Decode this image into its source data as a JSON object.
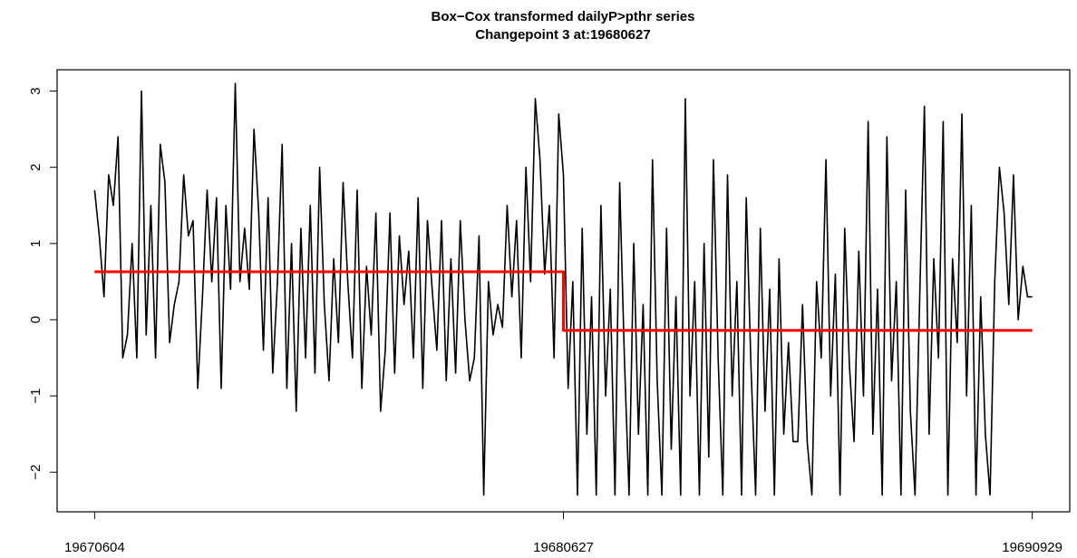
{
  "chart_data": {
    "type": "line",
    "title": "Box−Cox transformed dailyP>pthr series",
    "subtitle": "Changepoint 3 at:19680627",
    "xlim": [
      -8,
      208
    ],
    "xticks": [
      {
        "value": 0,
        "label": "19670604"
      },
      {
        "value": 100,
        "label": "19680627"
      },
      {
        "value": 200,
        "label": "19690929"
      }
    ],
    "ylim": [
      -2.52,
      3.28
    ],
    "yticks": [
      {
        "value": -2,
        "label": "−2"
      },
      {
        "value": -1,
        "label": "−1"
      },
      0,
      1,
      2,
      3
    ],
    "series": [
      {
        "color": "#000000",
        "values": [
          1.7,
          1.1,
          0.3,
          1.9,
          1.5,
          2.4,
          -0.5,
          -0.2,
          1.0,
          -0.5,
          3.0,
          -0.2,
          1.5,
          -0.5,
          2.3,
          1.8,
          -0.3,
          0.2,
          0.5,
          1.9,
          1.1,
          1.3,
          -0.9,
          0.3,
          1.7,
          0.5,
          1.6,
          -0.9,
          1.5,
          0.4,
          3.1,
          0.5,
          1.2,
          0.4,
          2.5,
          1.4,
          -0.4,
          1.6,
          -0.7,
          0.5,
          2.3,
          -0.9,
          1.0,
          -1.2,
          1.2,
          -0.5,
          1.5,
          -0.7,
          2.0,
          0.2,
          -0.8,
          0.8,
          -0.3,
          1.8,
          0.5,
          -0.5,
          1.7,
          -0.9,
          0.7,
          -0.2,
          1.4,
          -1.2,
          -0.4,
          1.4,
          -0.7,
          1.1,
          0.2,
          0.9,
          -0.5,
          1.6,
          -0.9,
          1.3,
          0.4,
          -0.4,
          1.3,
          -0.8,
          0.8,
          -0.7,
          1.3,
          0.0,
          -0.8,
          -0.5,
          1.1,
          -2.3,
          0.5,
          -0.2,
          0.2,
          -0.1,
          1.5,
          0.3,
          1.3,
          -0.5,
          2.0,
          0.5,
          2.9,
          2.1,
          0.6,
          1.5,
          -0.5,
          2.7,
          1.9,
          -0.9,
          0.5,
          -2.3,
          1.2,
          -1.5,
          0.3,
          -2.3,
          1.5,
          -1.0,
          0.4,
          -2.3,
          1.8,
          -0.5,
          -2.3,
          1.0,
          -1.5,
          0.2,
          -2.3,
          2.1,
          -0.8,
          -2.3,
          1.2,
          -1.7,
          0.3,
          -2.3,
          2.9,
          -1.0,
          0.5,
          -2.3,
          1.0,
          -1.8,
          2.1,
          -0.5,
          -2.3,
          1.9,
          -1.0,
          0.5,
          -2.3,
          1.6,
          -0.6,
          -2.3,
          1.2,
          -1.2,
          0.4,
          -2.3,
          0.8,
          -1.5,
          -0.3,
          -1.6,
          -1.6,
          0.2,
          -1.6,
          -2.3,
          0.5,
          -0.5,
          2.1,
          -1.0,
          0.6,
          -2.3,
          1.2,
          -0.6,
          -1.6,
          0.9,
          -1.0,
          2.6,
          -1.5,
          0.4,
          -2.3,
          2.4,
          -0.8,
          0.5,
          -2.3,
          1.7,
          -1.2,
          -2.3,
          0.3,
          2.8,
          -1.5,
          0.8,
          -0.5,
          2.6,
          -2.3,
          0.8,
          -0.3,
          2.7,
          -1.0,
          1.5,
          -2.3,
          0.3,
          -1.5,
          -2.3,
          0.5,
          2.0,
          1.4,
          0.2,
          1.9,
          0.0,
          0.7,
          0.3,
          0.3
        ]
      },
      {
        "color": "#ff0000",
        "x": [
          0,
          100,
          100,
          200
        ],
        "values": [
          0.63,
          0.63,
          -0.14,
          -0.14
        ]
      }
    ]
  }
}
